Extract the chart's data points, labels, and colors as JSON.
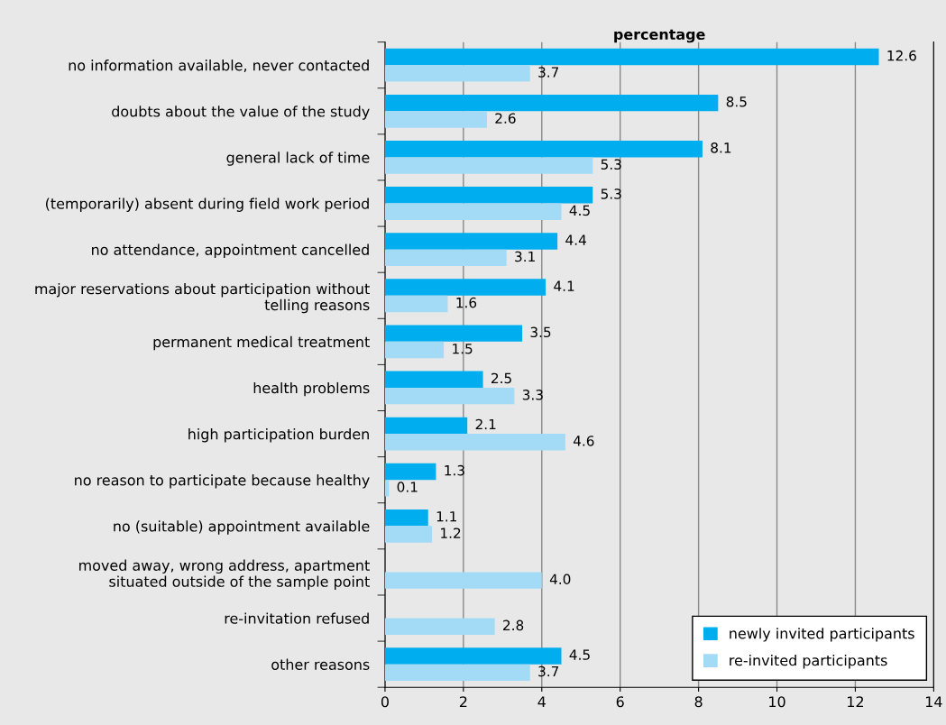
{
  "chart_data": {
    "type": "bar",
    "orientation": "horizontal",
    "xlabel": "percentage",
    "categories": [
      "no information available, never contacted",
      "doubts about the value of the study",
      "general lack of time",
      "(temporarily) absent during field work period",
      "no attendance, appointment cancelled",
      "major reservations about participation without\ntelling reasons",
      "permanent medical treatment",
      "health problems",
      "high participation burden",
      "no reason to participate because healthy",
      "no (suitable) appointment available",
      "moved away, wrong address, apartment\nsituated outside of the sample point",
      "re-invitation refused",
      "other reasons"
    ],
    "series": [
      {
        "name": "newly invited participants",
        "color": "#00aeef",
        "values": [
          12.6,
          8.5,
          8.1,
          5.3,
          4.4,
          4.1,
          3.5,
          2.5,
          2.1,
          1.3,
          1.1,
          null,
          null,
          4.5
        ],
        "value_labels": [
          "12.6",
          "8.5",
          "8.1",
          "5.3",
          "4.4",
          "4.1",
          "3.5",
          "2.5",
          "2.1",
          "1.3",
          "1.1",
          null,
          null,
          "4.5"
        ]
      },
      {
        "name": "re-invited participants",
        "color": "#a3dbf7",
        "values": [
          3.7,
          2.6,
          5.3,
          4.5,
          3.1,
          1.6,
          1.5,
          3.3,
          4.6,
          0.1,
          1.2,
          4.0,
          2.8,
          3.7
        ],
        "value_labels": [
          "3.7",
          "2.6",
          "5.3",
          "4.5",
          "3.1",
          "1.6",
          "1.5",
          "3.3",
          "4.6",
          "0.1",
          "1.2",
          "4.0",
          "2.8",
          "3.7"
        ]
      }
    ],
    "xlim": [
      0,
      14
    ],
    "xticks": [
      0,
      2,
      4,
      6,
      8,
      10,
      12,
      14
    ],
    "grid": "x",
    "legend": "bottom right"
  }
}
